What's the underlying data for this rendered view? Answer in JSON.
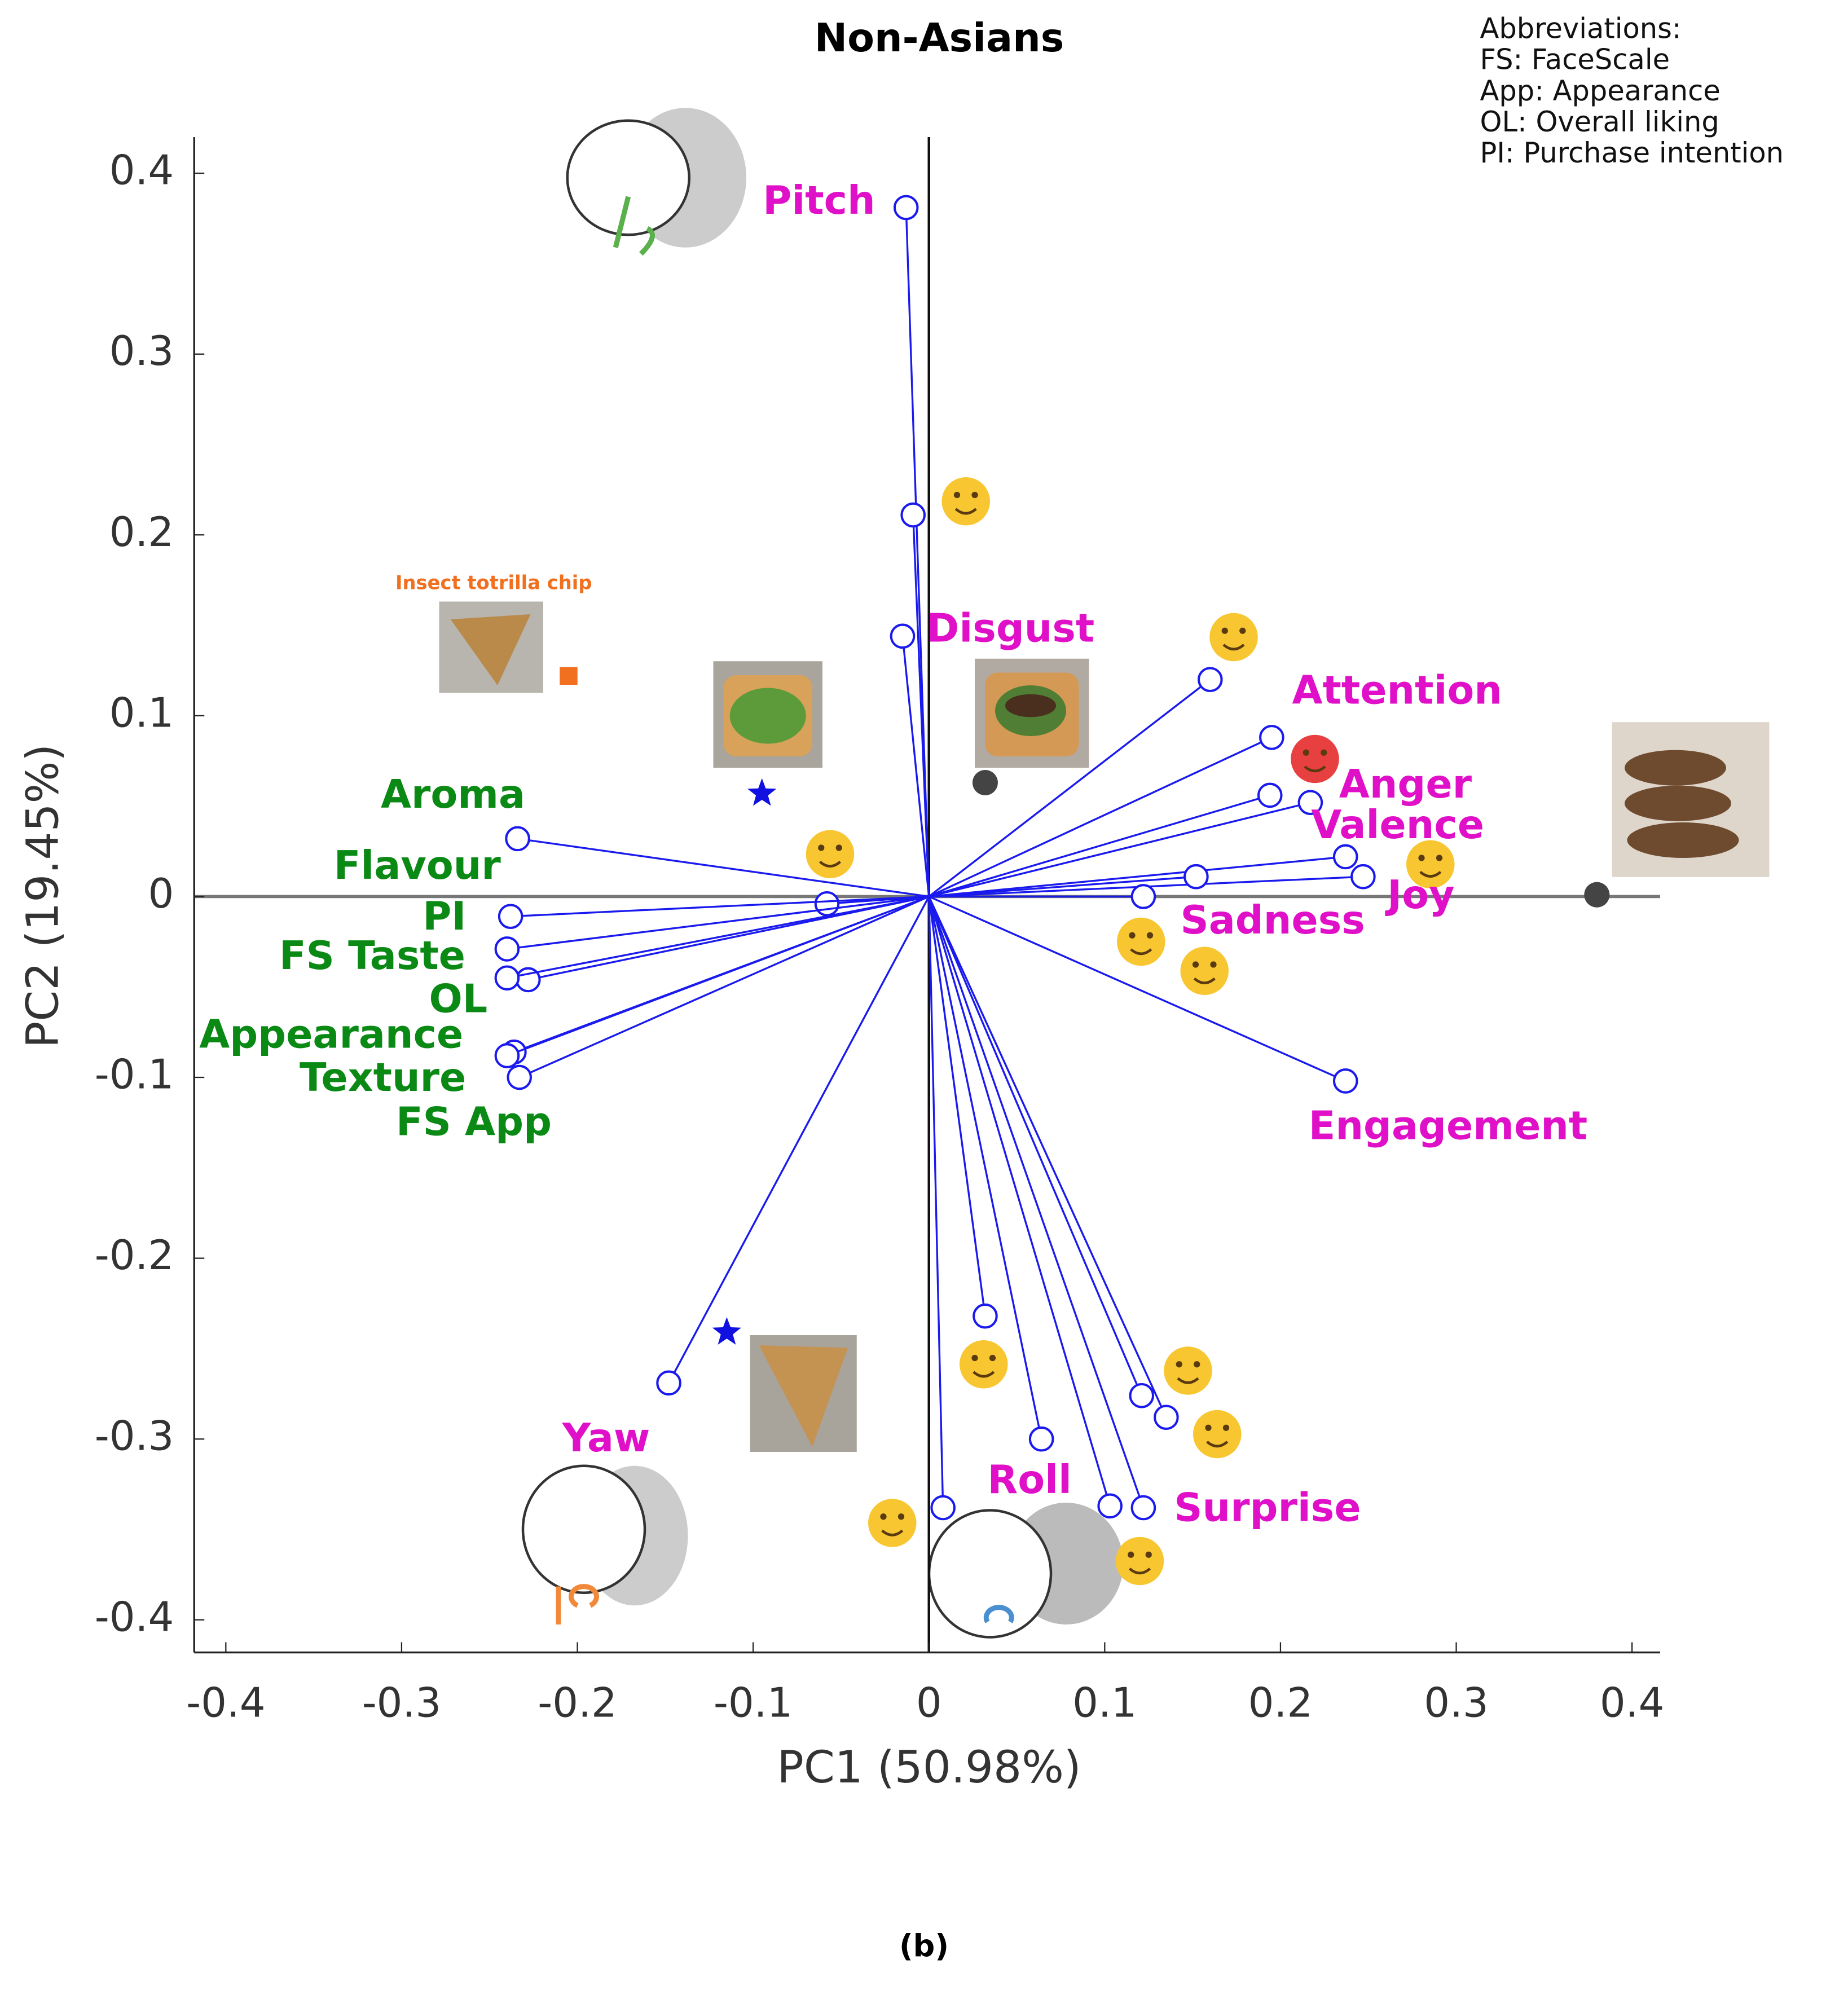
{
  "chart_data": {
    "type": "biplot",
    "title": "Non-Asians",
    "x_label": "PC1 (50.98%)",
    "y_label": "PC2 (19.45%)",
    "xlim": [
      -0.418,
      0.416
    ],
    "ylim": [
      -0.418,
      0.42
    ],
    "xticks": [
      -0.4,
      -0.3,
      -0.2,
      -0.1,
      0,
      0.1,
      0.2,
      0.3,
      0.4
    ],
    "yticks": [
      -0.4,
      -0.3,
      -0.2,
      -0.1,
      0,
      0.1,
      0.2,
      0.3,
      0.4
    ],
    "loadings": {
      "color": "#1a1aee",
      "x": [
        -0.013,
        -0.009,
        -0.015,
        0.16,
        0.195,
        0.194,
        0.217,
        0.237,
        0.247,
        0.152,
        0.122,
        0.237,
        -0.234,
        -0.058,
        -0.238,
        -0.24,
        -0.228,
        -0.24,
        -0.236,
        -0.24,
        -0.233,
        -0.148,
        0.032,
        0.064,
        0.008,
        0.103,
        0.122,
        0.121,
        0.135
      ],
      "y": [
        0.381,
        0.211,
        0.144,
        0.12,
        0.088,
        0.056,
        0.052,
        0.022,
        0.011,
        0.011,
        0,
        -0.102,
        0.032,
        -0.004,
        -0.011,
        -0.029,
        -0.046,
        -0.045,
        -0.086,
        -0.088,
        -0.1,
        -0.269,
        -0.232,
        -0.3,
        -0.338,
        -0.337,
        -0.338,
        -0.276,
        -0.288
      ]
    },
    "variable_labels": {
      "emotion_color": "#e010c8",
      "sensory_color": "#0a8a14",
      "emotion": [
        "Pitch",
        "Disgust",
        "Attention",
        "Anger",
        "Valence",
        "Joy",
        "Sadness",
        "Engagement",
        "Yaw",
        "Roll",
        "Surprise"
      ],
      "sensory": [
        "Aroma",
        "Flavour",
        "PI",
        "FS Taste",
        "OL",
        "Appearance",
        "Texture",
        "FS App"
      ]
    },
    "samples": {
      "x": [
        -0.205,
        -0.095,
        0.032,
        0.38,
        -0.115
      ],
      "y": [
        0.122,
        0.057,
        0.063,
        0.001,
        -0.241
      ],
      "markers": [
        "square",
        "star",
        "circle",
        "circle",
        "star"
      ],
      "colors": [
        "#f07020",
        "#1010e0",
        "#444444",
        "#444444",
        "#1010e0"
      ]
    },
    "annotation": "Insect totrilla chip",
    "abbreviations": [
      "Abbreviations:",
      "FS: FaceScale",
      "App: Appearance",
      "OL: Overall liking",
      "PI: Purchase intention"
    ],
    "caption": "(b)"
  }
}
